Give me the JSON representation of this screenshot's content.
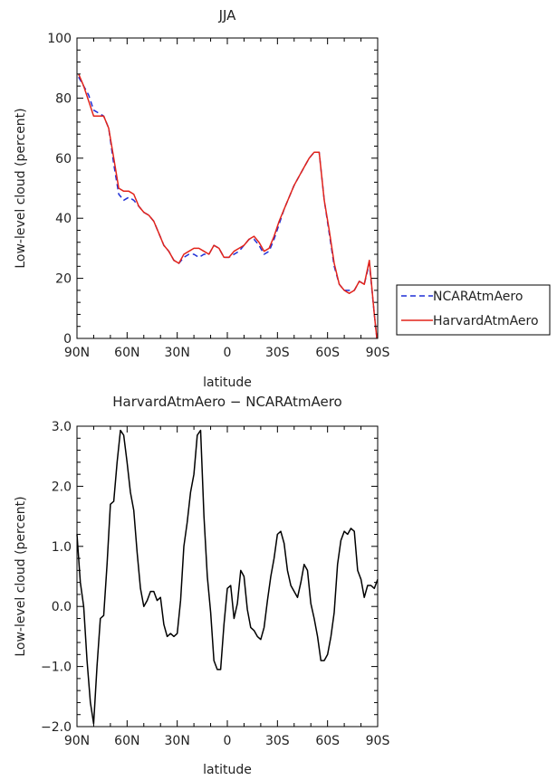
{
  "chart_data": [
    {
      "type": "line",
      "title": "JJA",
      "xlabel": "latitude",
      "ylabel": "Low-level cloud (percent)",
      "xlim": [
        90,
        -90
      ],
      "ylim": [
        0,
        100
      ],
      "x_ticks": [
        90,
        60,
        30,
        0,
        -30,
        -60,
        -90
      ],
      "x_tick_labels": [
        "90N",
        "60N",
        "30N",
        "0",
        "30S",
        "60S",
        "90S"
      ],
      "y_ticks": [
        0,
        20,
        40,
        60,
        80,
        100
      ],
      "y_tick_labels": [
        "0",
        "20",
        "40",
        "60",
        "80",
        "100"
      ],
      "legend_position": "outside-right",
      "series": [
        {
          "name": "NCARAtmAero",
          "color": "#1f2fd6",
          "dash": "dashed",
          "x": [
            89,
            86,
            83,
            80,
            77,
            74,
            71,
            68,
            65,
            62,
            59,
            56,
            53,
            50,
            47,
            44,
            41,
            38,
            35,
            32,
            29,
            26,
            23,
            20,
            17,
            14,
            11,
            8,
            5,
            2,
            -1,
            -4,
            -7,
            -10,
            -13,
            -16,
            -19,
            -22,
            -25,
            -28,
            -31,
            -34,
            -37,
            -40,
            -43,
            -46,
            -49,
            -52,
            -55,
            -58,
            -61,
            -64,
            -67,
            -70,
            -73,
            -76,
            -79,
            -82,
            -85,
            -88,
            -89.5
          ],
          "y": [
            87,
            84,
            81,
            76,
            75,
            74,
            70,
            58,
            48,
            46,
            47,
            46,
            44,
            42,
            41,
            39,
            35,
            31,
            29,
            26,
            25,
            27,
            28,
            28,
            27,
            28,
            28,
            31,
            30,
            27,
            27,
            28,
            29,
            31,
            33,
            33,
            31,
            28,
            29,
            33,
            38,
            43,
            47,
            51,
            54,
            57,
            60,
            62,
            62,
            46,
            35,
            24,
            18,
            16,
            16,
            16,
            19,
            18,
            25,
            8,
            0
          ]
        },
        {
          "name": "HarvardAtmAero",
          "color": "#e2231a",
          "dash": "solid",
          "x": [
            89,
            86,
            83,
            80,
            77,
            74,
            71,
            68,
            65,
            62,
            59,
            56,
            53,
            50,
            47,
            44,
            41,
            38,
            35,
            32,
            29,
            26,
            23,
            20,
            17,
            14,
            11,
            8,
            5,
            2,
            -1,
            -4,
            -7,
            -10,
            -13,
            -16,
            -19,
            -22,
            -25,
            -28,
            -31,
            -34,
            -37,
            -40,
            -43,
            -46,
            -49,
            -52,
            -55,
            -58,
            -61,
            -64,
            -67,
            -70,
            -73,
            -76,
            -79,
            -82,
            -85,
            -88,
            -89.5
          ],
          "y": [
            88,
            84,
            79,
            74,
            74,
            74,
            70,
            60,
            50,
            49,
            49,
            48,
            44,
            42,
            41,
            39,
            35,
            31,
            29,
            26,
            25,
            28,
            29,
            30,
            30,
            29,
            28,
            31,
            30,
            27,
            27,
            29,
            30,
            31,
            33,
            34,
            32,
            29,
            30,
            34,
            39,
            43,
            47,
            51,
            54,
            57,
            60,
            62,
            62,
            46,
            36,
            25,
            18,
            16,
            15,
            16,
            19,
            18,
            26,
            8,
            0
          ]
        }
      ]
    },
    {
      "type": "line",
      "title": "HarvardAtmAero − NCARAtmAero",
      "xlabel": "latitude",
      "ylabel": "Low-level cloud (percent)",
      "xlim": [
        90,
        -90
      ],
      "ylim": [
        -2.0,
        3.0
      ],
      "x_ticks": [
        90,
        60,
        30,
        0,
        -30,
        -60,
        -90
      ],
      "x_tick_labels": [
        "90N",
        "60N",
        "30N",
        "0",
        "30S",
        "60S",
        "90S"
      ],
      "y_ticks": [
        -2.0,
        -1.0,
        0.0,
        1.0,
        2.0,
        3.0
      ],
      "y_tick_labels": [
        "−2.0",
        "−1.0",
        "0.0",
        "1.0",
        "2.0",
        "3.0"
      ],
      "series": [
        {
          "color": "#000000",
          "dash": "solid",
          "x": [
            90,
            88,
            86,
            84,
            82,
            80,
            78,
            76,
            74,
            72,
            70,
            68,
            66,
            64,
            62,
            60,
            58,
            56,
            54,
            52,
            50,
            48,
            46,
            44,
            42,
            40,
            38,
            36,
            34,
            32,
            30,
            28,
            26,
            24,
            22,
            20,
            18,
            16,
            14,
            12,
            10,
            8,
            6,
            4,
            2,
            0,
            -2,
            -4,
            -6,
            -8,
            -10,
            -12,
            -14,
            -16,
            -18,
            -20,
            -22,
            -24,
            -26,
            -28,
            -30,
            -32,
            -34,
            -36,
            -38,
            -40,
            -42,
            -44,
            -46,
            -48,
            -50,
            -52,
            -54,
            -56,
            -58,
            -60,
            -62,
            -64,
            -66,
            -68,
            -70,
            -72,
            -74,
            -76,
            -78,
            -80,
            -82,
            -84,
            -86,
            -88,
            -90
          ],
          "y": [
            1.2,
            0.4,
            0.0,
            -0.9,
            -1.6,
            -1.95,
            -1.0,
            -0.2,
            -0.15,
            0.7,
            1.7,
            1.75,
            2.4,
            2.93,
            2.85,
            2.4,
            1.9,
            1.6,
            0.9,
            0.3,
            0.0,
            0.1,
            0.25,
            0.25,
            0.1,
            0.15,
            -0.3,
            -0.5,
            -0.45,
            -0.5,
            -0.45,
            0.1,
            1.0,
            1.4,
            1.9,
            2.2,
            2.85,
            2.93,
            1.5,
            0.5,
            -0.1,
            -0.9,
            -1.05,
            -1.05,
            -0.3,
            0.3,
            0.35,
            -0.2,
            0.05,
            0.6,
            0.5,
            -0.05,
            -0.35,
            -0.4,
            -0.5,
            -0.55,
            -0.35,
            0.1,
            0.5,
            0.8,
            1.2,
            1.25,
            1.05,
            0.6,
            0.35,
            0.25,
            0.15,
            0.4,
            0.7,
            0.6,
            0.05,
            -0.2,
            -0.5,
            -0.9,
            -0.9,
            -0.8,
            -0.5,
            -0.1,
            0.7,
            1.1,
            1.25,
            1.2,
            1.3,
            1.25,
            0.6,
            0.45,
            0.15,
            0.35,
            0.35,
            0.3,
            0.45
          ]
        }
      ]
    }
  ]
}
